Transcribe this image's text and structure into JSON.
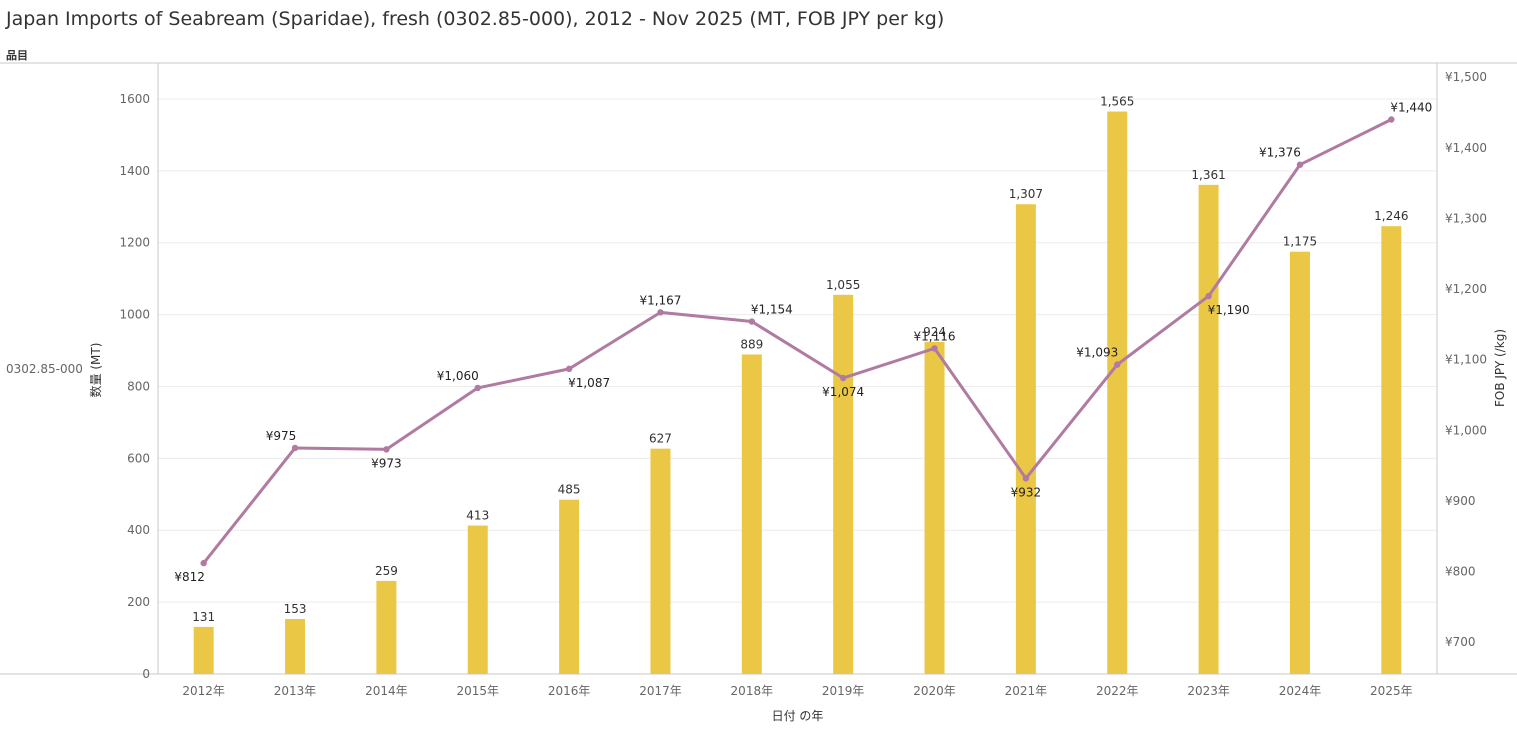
{
  "title": "Japan Imports of Seabream (Sparidae), fresh (0302.85-000), 2012 - Nov 2025 (MT, FOB JPY per kg)",
  "row_header": "品目",
  "row_label": "0302.85-000",
  "colors": {
    "bar": "#EAC846",
    "line": "#B07AA1",
    "grid": "#ececec",
    "axis": "#c8c8c8"
  },
  "chart_data": {
    "type": "bar",
    "categories": [
      "2012年",
      "2013年",
      "2014年",
      "2015年",
      "2016年",
      "2017年",
      "2018年",
      "2019年",
      "2020年",
      "2021年",
      "2022年",
      "2023年",
      "2024年",
      "2025年"
    ],
    "xlabel": "日付 の年",
    "ylabel": "数量 (MT)",
    "y2label": "FOB JPY (/kg)",
    "ylim": [
      0,
      1700
    ],
    "y2lim": [
      655,
      1520
    ],
    "y_ticks": [
      "0",
      "200",
      "400",
      "600",
      "800",
      "1000",
      "1200",
      "1400",
      "1600"
    ],
    "y_tick_values": [
      0,
      200,
      400,
      600,
      800,
      1000,
      1200,
      1400,
      1600
    ],
    "y2_ticks": [
      "¥700",
      "¥800",
      "¥900",
      "¥1,000",
      "¥1,100",
      "¥1,200",
      "¥1,300",
      "¥1,400",
      "¥1,500"
    ],
    "y2_tick_values": [
      700,
      800,
      900,
      1000,
      1100,
      1200,
      1300,
      1400,
      1500
    ],
    "series": [
      {
        "name": "数量 (MT)",
        "type": "bar",
        "values": [
          131,
          153,
          259,
          413,
          485,
          627,
          889,
          1055,
          924,
          1307,
          1565,
          1361,
          1175,
          1246
        ],
        "labels": [
          "131",
          "153",
          "259",
          "413",
          "485",
          "627",
          "889",
          "1,055",
          "924",
          "1,307",
          "1,565",
          "1,361",
          "1,175",
          "1,246"
        ]
      },
      {
        "name": "FOB JPY (/kg)",
        "type": "line",
        "values": [
          812,
          975,
          973,
          1060,
          1087,
          1167,
          1154,
          1074,
          1116,
          932,
          1093,
          1190,
          1376,
          1440
        ],
        "labels": [
          "¥812",
          "¥975",
          "¥973",
          "¥1,060",
          "¥1,087",
          "¥1,167",
          "¥1,154",
          "¥1,074",
          "¥1,116",
          "¥932",
          "¥1,093",
          "¥1,190",
          "¥1,376",
          "¥1,440"
        ]
      }
    ]
  }
}
